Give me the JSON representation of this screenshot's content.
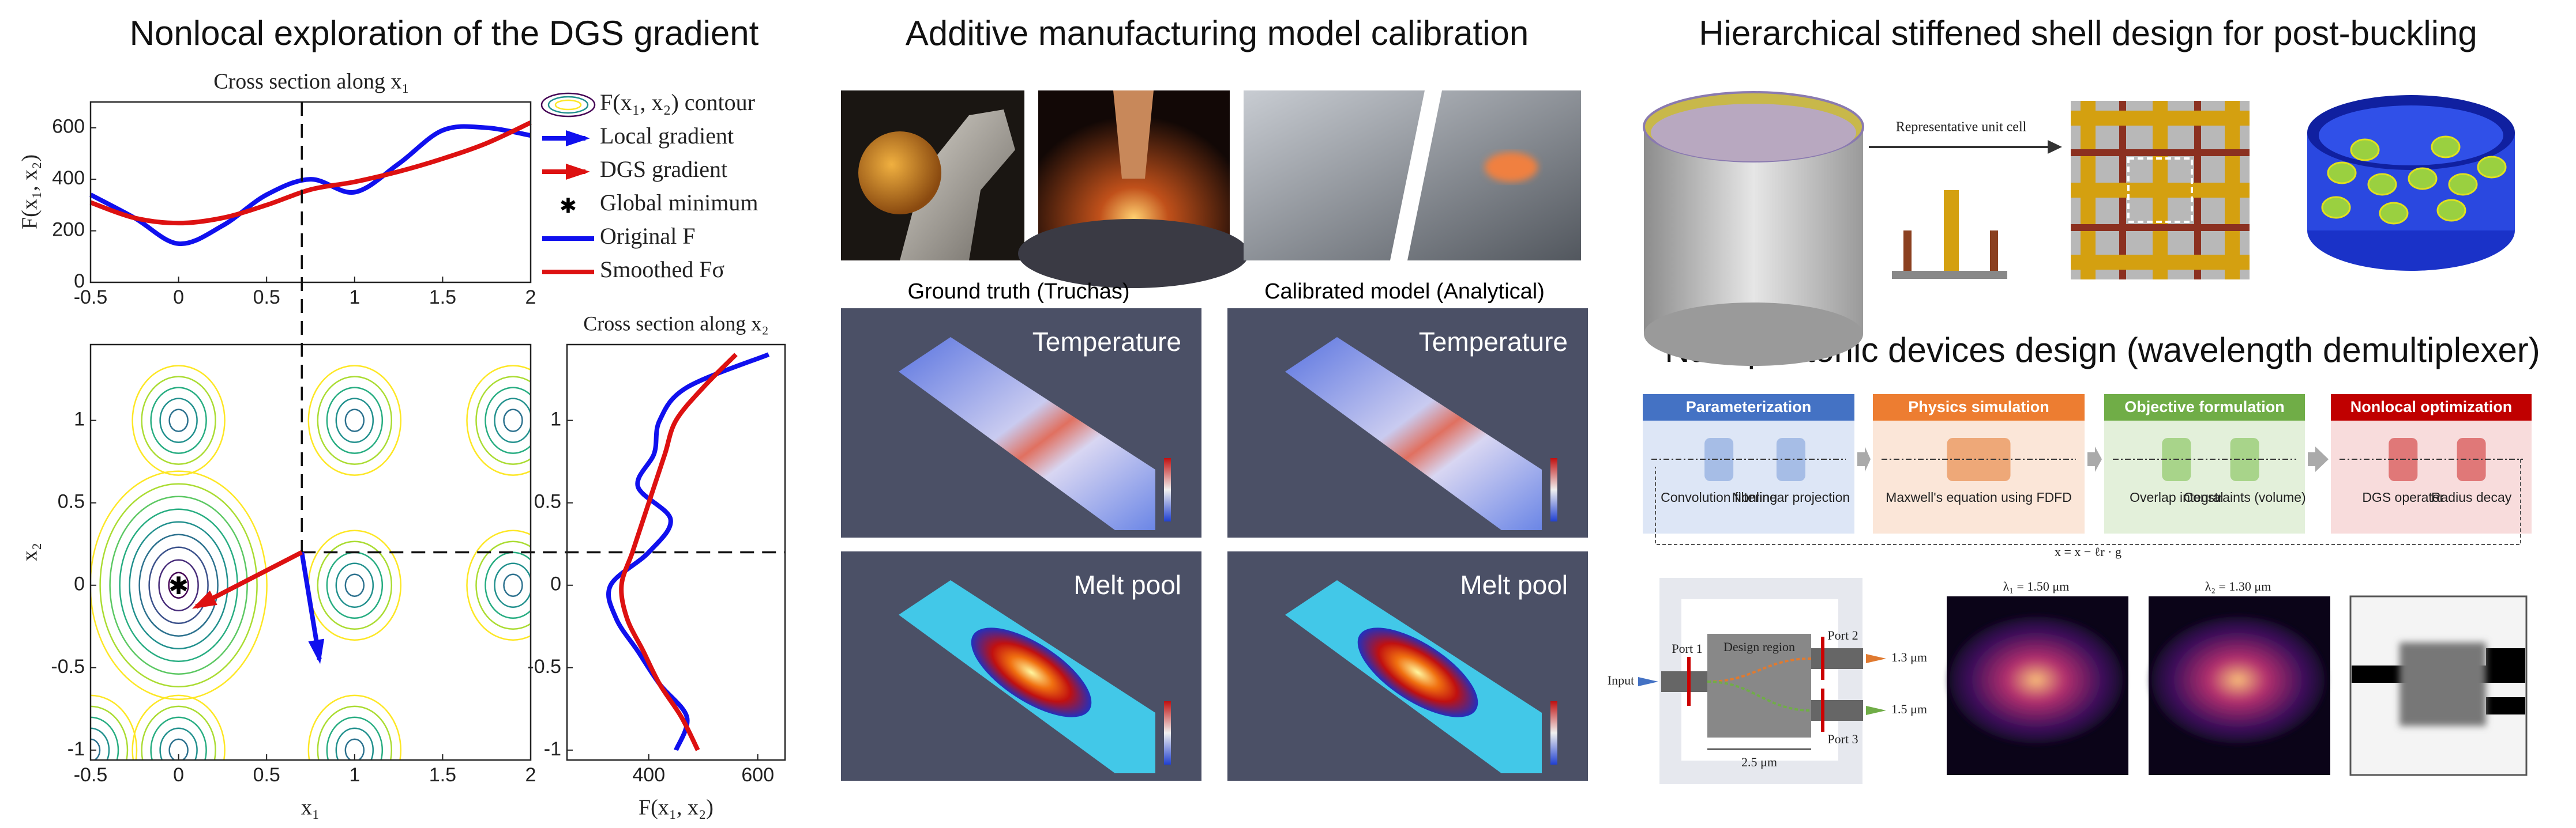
{
  "chart_data": [
    {
      "type": "line",
      "title": "Cross section along x₁",
      "x_label": "x₁",
      "y_label": "F(x₁, x₂)",
      "x": [
        -0.5,
        -0.25,
        0,
        0.25,
        0.5,
        0.75,
        1,
        1.25,
        1.5,
        1.75,
        2
      ],
      "series": [
        {
          "name": "Original F",
          "color": "#1010ee",
          "values": [
            340,
            250,
            150,
            220,
            340,
            400,
            350,
            460,
            590,
            600,
            570
          ]
        },
        {
          "name": "Smoothed Fσ",
          "color": "#dd1111",
          "values": [
            310,
            250,
            230,
            250,
            300,
            360,
            390,
            430,
            480,
            540,
            620
          ]
        }
      ],
      "xlim": [
        -0.5,
        2
      ],
      "ylim": [
        0,
        700
      ],
      "xticks": [
        -0.5,
        0,
        0.5,
        1,
        1.5,
        2
      ],
      "yticks": [
        0,
        200,
        400,
        600
      ]
    },
    {
      "type": "contour",
      "x_label": "x₁",
      "y_label": "x₂",
      "legend": [
        "F(x₁, x₂) contour",
        "Local gradient",
        "DGS gradient",
        "Global minimum"
      ],
      "wells": [
        [
          0,
          0
        ],
        [
          1,
          0
        ],
        [
          0,
          1
        ],
        [
          1,
          1
        ],
        [
          1.9,
          0
        ],
        [
          1.9,
          1
        ],
        [
          0,
          -1
        ],
        [
          1,
          -1
        ],
        [
          -0.5,
          -1
        ]
      ],
      "minimum": [
        0,
        0
      ],
      "cross": [
        0.7,
        0.2
      ],
      "arrows": [
        {
          "color": "#1010ee",
          "to": [
            0.8,
            -0.45
          ]
        },
        {
          "color": "#dd1111",
          "to": [
            0.1,
            -0.13
          ]
        }
      ],
      "xlim": [
        -0.5,
        2
      ],
      "ylim": [
        -1.06,
        1.46
      ],
      "xticks": [
        -0.5,
        0,
        0.5,
        1,
        1.5,
        2
      ],
      "yticks": [
        -1,
        -0.5,
        0,
        0.5,
        1
      ]
    },
    {
      "type": "line",
      "title": "Cross section along x₂",
      "x_label": "F(x₁, x₂)",
      "y": [
        -1,
        -0.8,
        -0.6,
        -0.4,
        -0.2,
        0,
        0.2,
        0.4,
        0.6,
        0.8,
        1,
        1.2,
        1.4
      ],
      "series": [
        {
          "color": "#1010ee",
          "values": [
            450,
            470,
            420,
            380,
            340,
            330,
            400,
            440,
            380,
            410,
            420,
            470,
            620
          ]
        },
        {
          "color": "#dd1111",
          "values": [
            490,
            460,
            420,
            390,
            360,
            350,
            370,
            390,
            410,
            430,
            450,
            500,
            560
          ]
        }
      ],
      "xlim": [
        250,
        650
      ],
      "ylim": [
        -1.06,
        1.46
      ],
      "xticks": [
        400,
        600
      ],
      "yticks": [
        -1,
        -0.5,
        0,
        0.5,
        1
      ]
    }
  ],
  "dgs": {
    "title": "Nonlocal exploration of the DGS gradient"
  },
  "additive": {
    "title": "Additive manufacturing model calibration",
    "columns": [
      "Ground truth (Truchas)",
      "Calibrated model (Analytical)"
    ],
    "rows": [
      "Temperature",
      "Melt pool"
    ]
  },
  "shell": {
    "title": "Hierarchical stiffened shell design for post-buckling",
    "unit_cell": "Representative unit cell"
  },
  "photonics": {
    "title": "Nanophotonic devices design (wavelength demultiplexer)",
    "stages": [
      {
        "title": "Parameterization",
        "items": [
          "Convolution filtering",
          "Nonlinear projection"
        ]
      },
      {
        "title": "Physics simulation",
        "items": [
          "Maxwell's equation using FDFD"
        ]
      },
      {
        "title": "Objective formulation",
        "items": [
          "Overlap integral",
          "Constraints (volume)"
        ]
      },
      {
        "title": "Nonlocal optimization",
        "items": [
          "DGS operator",
          "Radius decay"
        ]
      }
    ],
    "update": "x = x − ℓr · g",
    "device": {
      "input": "Input",
      "ports": [
        "Port 1",
        "Port 2",
        "Port 3"
      ],
      "design": "Design region",
      "outputs": [
        "1.3 μm",
        "1.5 μm"
      ],
      "width": "2.5 μm"
    },
    "fields": [
      "λ₁ = 1.50 μm",
      "λ₂ = 1.30 μm"
    ]
  }
}
